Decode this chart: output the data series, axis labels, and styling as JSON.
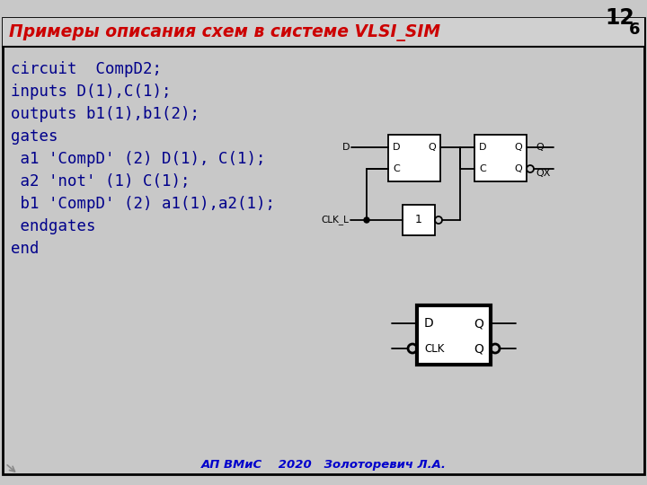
{
  "bg_color": "#c8c8c8",
  "border_color": "#000000",
  "title": "Примеры описания схем в системе VLSI_SIM",
  "title_color": "#cc0000",
  "slide_number": "12",
  "slide_sub": "6",
  "footer": "АП ВМиС    2020   Золоторевич Л.А.",
  "footer_color": "#0000cc",
  "code_lines": [
    "circuit  CompD2;",
    "inputs D(1),C(1);",
    "outputs b1(1),b1(2);",
    "gates",
    " a1 'CompD' (2) D(1), C(1);",
    " a2 'not' (1) C(1);",
    " b1 'CompD' (2) a1(1),a2(1);",
    " endgates",
    "end"
  ],
  "code_color": "#00008b",
  "code_fontsize": 12.5,
  "title_fontsize": 13.5
}
